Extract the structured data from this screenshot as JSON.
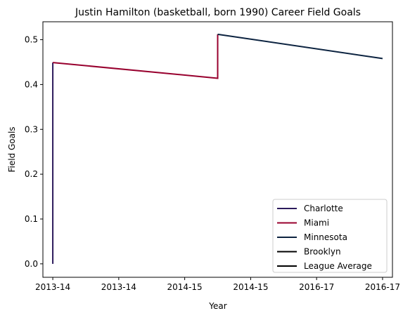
{
  "chart_data": {
    "type": "line",
    "title": "Justin Hamilton (basketball, born 1990) Career Field Goals",
    "xlabel": "Year",
    "ylabel": "Field Goals",
    "x_ticks": [
      "2013-14",
      "2013-14",
      "2014-15",
      "2014-15",
      "2016-17",
      "2016-17"
    ],
    "y_ticks": [
      "0.0",
      "0.1",
      "0.2",
      "0.3",
      "0.4",
      "0.5"
    ],
    "ylim": [
      -0.03,
      0.54
    ],
    "xlim": [
      -0.15,
      5.15
    ],
    "grid": false,
    "legend_position": "lower-right",
    "series": [
      {
        "name": "Charlotte",
        "color": "#2c1a5c",
        "points": [
          [
            0,
            0.0
          ],
          [
            0,
            0.449
          ]
        ]
      },
      {
        "name": "Miami",
        "color": "#98002e",
        "points": [
          [
            0,
            0.449
          ],
          [
            2.5,
            0.414
          ],
          [
            2.5,
            0.512
          ]
        ]
      },
      {
        "name": "Minnesota",
        "color": "#0c2340",
        "points": [
          [
            2.5,
            0.512
          ],
          [
            5,
            0.458
          ]
        ]
      },
      {
        "name": "Brooklyn",
        "color": "#000000",
        "points": []
      },
      {
        "name": "League Average",
        "color": "#000000",
        "points": []
      }
    ]
  }
}
